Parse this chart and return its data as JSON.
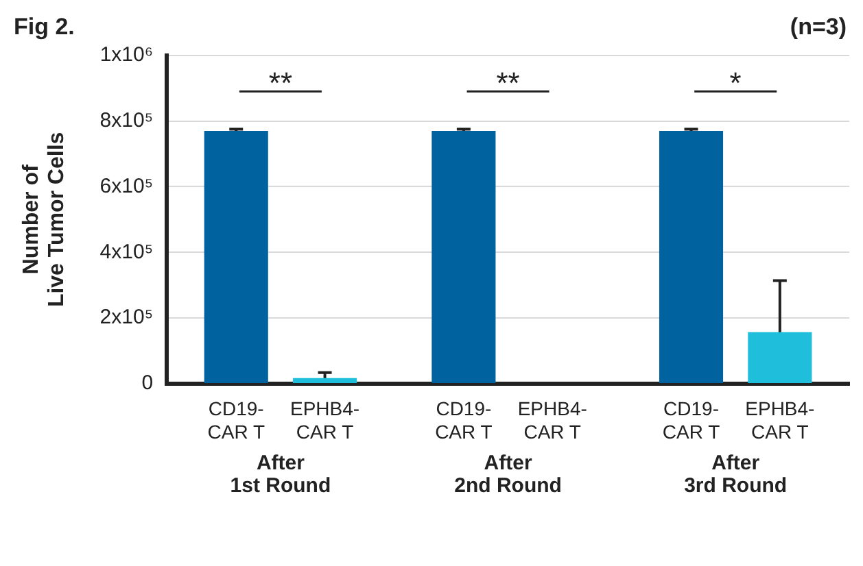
{
  "chart_data": {
    "type": "bar",
    "title": "Fig 2.",
    "ylabel": "Number of\nLive Tumor Cells",
    "categories": [
      "After\n1st Round",
      "After\n2nd Round",
      "After\n3rd Round"
    ],
    "series": [
      {
        "name": "CD19-\nCAR T",
        "color": "#0063a0",
        "values": [
          770000,
          770000,
          770000
        ],
        "errors": [
          5000,
          5000,
          5000
        ]
      },
      {
        "name": "EPHB4-\nCAR T",
        "color": "#1fbfdc",
        "values": [
          17000,
          0,
          157000
        ],
        "errors": [
          17000,
          null,
          157000
        ]
      }
    ],
    "ylim": [
      0,
      1000000
    ],
    "yticks": [
      0,
      {
        "value": 200000,
        "label": "2x10⁵"
      },
      {
        "value": 400000,
        "label": "4x10⁵"
      },
      {
        "value": 600000,
        "label": "6x10⁵"
      },
      {
        "value": 800000,
        "label": "8x10⁵"
      },
      {
        "value": 1000000,
        "label": "1x10⁶"
      }
    ],
    "grid": "y",
    "legend": false,
    "annotations": [
      "(n=3)",
      "**",
      "**",
      "*"
    ]
  }
}
